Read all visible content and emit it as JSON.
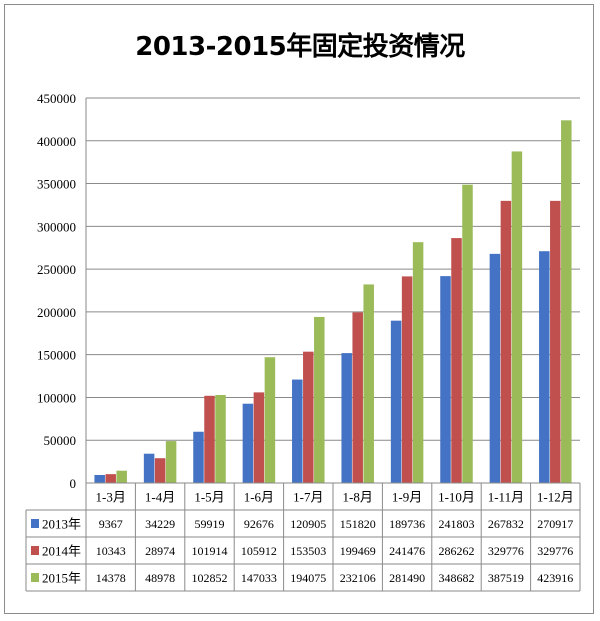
{
  "chart_data": {
    "type": "bar",
    "title": "2013-2015年固定投资情况",
    "categories": [
      "1-3月",
      "1-4月",
      "1-5月",
      "1-6月",
      "1-7月",
      "1-8月",
      "1-9月",
      "1-10月",
      "1-11月",
      "1-12月"
    ],
    "series": [
      {
        "name": "2013年",
        "color": "#4472c4",
        "values": [
          9367,
          34229,
          59919,
          92676,
          120905,
          151820,
          189736,
          241803,
          267832,
          270917
        ]
      },
      {
        "name": "2014年",
        "color": "#c0504d",
        "values": [
          10343,
          28974,
          101914,
          105912,
          153503,
          199469,
          241476,
          286262,
          329776,
          329776
        ]
      },
      {
        "name": "2015年",
        "color": "#9bbb59",
        "values": [
          14378,
          48978,
          102852,
          147033,
          194075,
          232106,
          281490,
          348682,
          387519,
          423916
        ]
      }
    ],
    "ylim": [
      0,
      450000
    ],
    "yticks": [
      0,
      50000,
      100000,
      150000,
      200000,
      250000,
      300000,
      350000,
      400000,
      450000
    ],
    "grid": true,
    "legend": "data-table"
  }
}
